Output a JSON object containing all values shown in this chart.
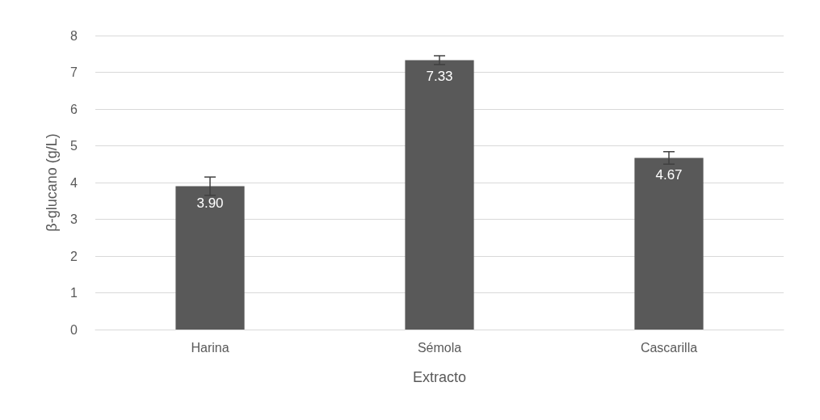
{
  "chart_data": {
    "type": "bar",
    "xlabel": "Extracto",
    "ylabel": "β-glucano (g/L)",
    "categories": [
      "Harina",
      "Sémola",
      "Cascarilla"
    ],
    "values": [
      3.9,
      7.33,
      4.67
    ],
    "value_labels": [
      "3.90",
      "7.33",
      "4.67"
    ],
    "errors": [
      0.25,
      0.12,
      0.17
    ],
    "color": "#595959",
    "ylim": [
      0,
      8
    ],
    "yticks": [
      0,
      1,
      2,
      3,
      4,
      5,
      6,
      7,
      8
    ],
    "grid": "y"
  }
}
